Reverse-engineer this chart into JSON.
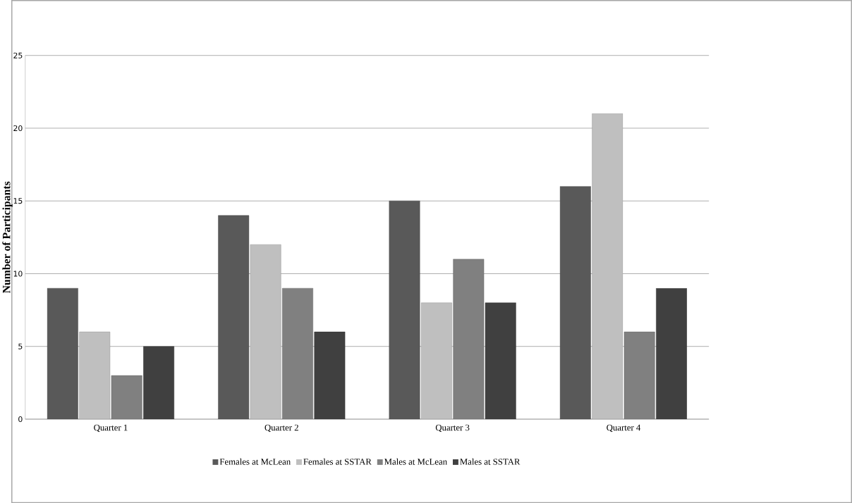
{
  "chart_data": {
    "type": "bar",
    "ylabel": "Number of Participants",
    "categories": [
      "Quarter 1",
      "Quarter 2",
      "Quarter 3",
      "Quarter 4"
    ],
    "series": [
      {
        "name": "Females at McLean",
        "color": "#595959",
        "values": [
          9,
          14,
          15,
          16
        ]
      },
      {
        "name": "Females at SSTAR",
        "color": "#bfbfbf",
        "values": [
          6,
          12,
          8,
          21
        ]
      },
      {
        "name": "Males at McLean",
        "color": "#808080",
        "values": [
          3,
          9,
          11,
          6
        ]
      },
      {
        "name": "Males at SSTAR",
        "color": "#404040",
        "values": [
          5,
          6,
          8,
          9
        ]
      }
    ],
    "ylim": [
      0,
      25
    ],
    "yticks": [
      0,
      5,
      10,
      15,
      20,
      25
    ],
    "grid": "y",
    "legend": "bottom"
  }
}
